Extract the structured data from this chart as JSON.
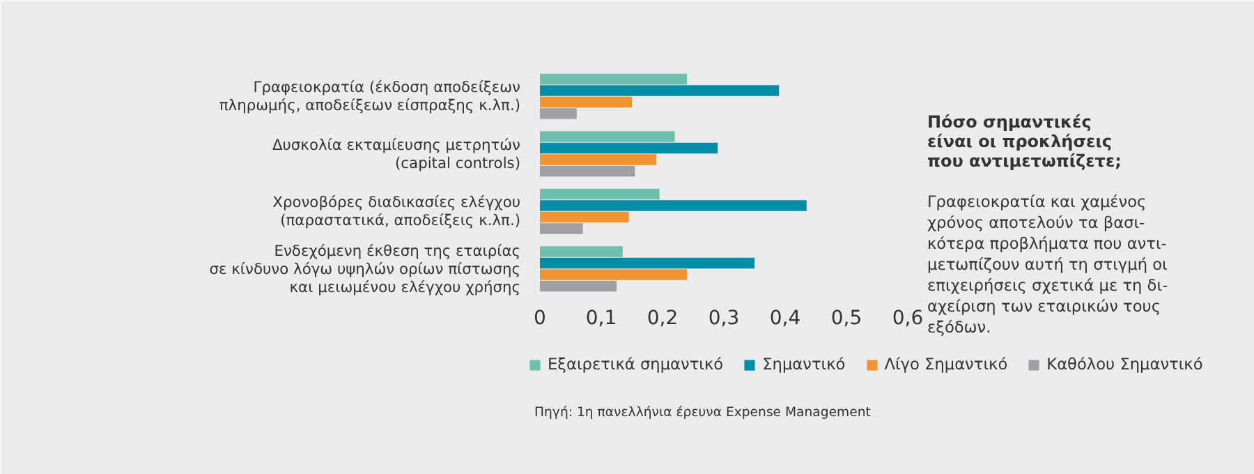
{
  "chart_data": {
    "type": "bar",
    "orientation": "horizontal",
    "title": "Πόσο σημαντικές\nείναι οι προκλήσεις\nπου αντιμετωπίζετε;",
    "categories": [
      "Γραφειοκρατία (έκδοση αποδείξεων\nπληρωμής, αποδείξεων είσπραξης κ.λπ.)",
      "Δυσκολία εκταμίευσης μετρητών\n(capital controls)",
      "Χρονοβόρες διαδικασίες ελέγχου\n(παραστατικά, αποδείξεις κ.λπ.)",
      "Ενδεχόμενη έκθεση της εταιρίας\nσε κίνδυνο λόγω υψηλών ορίων πίστωσης\nκαι μειωμένου ελέγχου χρήσης"
    ],
    "series": [
      {
        "name": "Εξαιρετικά σημαντικό",
        "color": "#6cc0ad",
        "values": [
          0.24,
          0.22,
          0.195,
          0.135
        ]
      },
      {
        "name": "Σημαντικό",
        "color": "#008da5",
        "values": [
          0.39,
          0.29,
          0.435,
          0.35
        ]
      },
      {
        "name": "Λίγο Σημαντικό",
        "color": "#f39433",
        "values": [
          0.15,
          0.19,
          0.145,
          0.24
        ]
      },
      {
        "name": "Καθόλου Σημαντικό",
        "color": "#a0a0a4",
        "values": [
          0.06,
          0.155,
          0.07,
          0.125
        ]
      }
    ],
    "xlim": [
      0,
      0.6
    ],
    "xticks": [
      {
        "value": 0,
        "label": "0"
      },
      {
        "value": 0.1,
        "label": "0,1"
      },
      {
        "value": 0.2,
        "label": "0,2"
      },
      {
        "value": 0.3,
        "label": "0,3"
      },
      {
        "value": 0.4,
        "label": "0,4"
      },
      {
        "value": 0.5,
        "label": "0,5"
      },
      {
        "value": 0.6,
        "label": "0,6"
      }
    ],
    "grid": false,
    "legend": "bottom",
    "annotations": [
      "Γραφειοκρατία και χαμένος\nχρόνος αποτελούν τα βασι-\nκότερα προβλήματα που αντι-\nμετωπίζουν αυτή τη στιγμή οι\nεπιχειρήσεις σχετικά με τη δι-\nαχείριση των εταιρικών τους\nεξόδων.",
      "Πηγή: 1η πανελλήνια έρευνα Expense Management"
    ]
  }
}
